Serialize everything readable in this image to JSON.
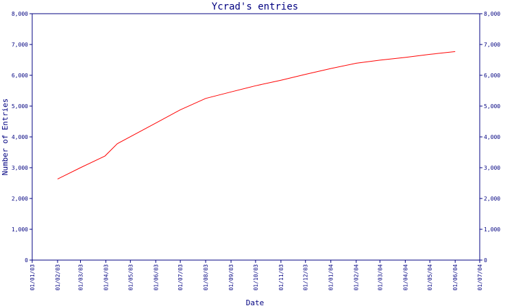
{
  "chart_data": {
    "type": "line",
    "title": "Ycrad's entries",
    "xlabel": "Date",
    "ylabel": "Number of Entries",
    "ylim": [
      0,
      8000
    ],
    "xlim": [
      "2003-01-01",
      "2004-07-01"
    ],
    "y_ticks": [
      0,
      1000,
      2000,
      3000,
      4000,
      5000,
      6000,
      7000,
      8000
    ],
    "y_tick_labels": [
      "0",
      "1,000",
      "2,000",
      "3,000",
      "4,000",
      "5,000",
      "6,000",
      "7,000",
      "8,000"
    ],
    "x_ticks": [
      "2003-01-01",
      "2003-02-01",
      "2003-03-01",
      "2003-04-01",
      "2003-05-01",
      "2003-06-01",
      "2003-07-01",
      "2003-08-01",
      "2003-09-01",
      "2003-10-01",
      "2003-11-01",
      "2003-12-01",
      "2004-01-01",
      "2004-02-01",
      "2004-03-01",
      "2004-04-01",
      "2004-05-01",
      "2004-06-01",
      "2004-07-01"
    ],
    "x_tick_labels": [
      "01/01/03",
      "01/02/03",
      "01/03/03",
      "01/04/03",
      "01/05/03",
      "01/06/03",
      "01/07/03",
      "01/08/03",
      "01/09/03",
      "01/10/03",
      "01/11/03",
      "01/12/03",
      "01/01/04",
      "01/02/04",
      "01/03/04",
      "01/04/04",
      "01/05/04",
      "01/06/04",
      "01/07/04"
    ],
    "grid": false,
    "series": [
      {
        "color": "#ff0000",
        "x": [
          "2003-02-01",
          "2003-03-01",
          "2003-03-31",
          "2003-04-15",
          "2003-06-01",
          "2003-07-01",
          "2003-08-01",
          "2003-09-01",
          "2003-10-01",
          "2003-11-01",
          "2003-12-01",
          "2004-01-01",
          "2004-02-01",
          "2004-03-01",
          "2004-04-01",
          "2004-05-01",
          "2004-06-01"
        ],
        "y": [
          2630,
          3000,
          3380,
          3780,
          4450,
          4880,
          5250,
          5460,
          5660,
          5840,
          6030,
          6220,
          6390,
          6490,
          6580,
          6680,
          6770
        ]
      }
    ]
  }
}
